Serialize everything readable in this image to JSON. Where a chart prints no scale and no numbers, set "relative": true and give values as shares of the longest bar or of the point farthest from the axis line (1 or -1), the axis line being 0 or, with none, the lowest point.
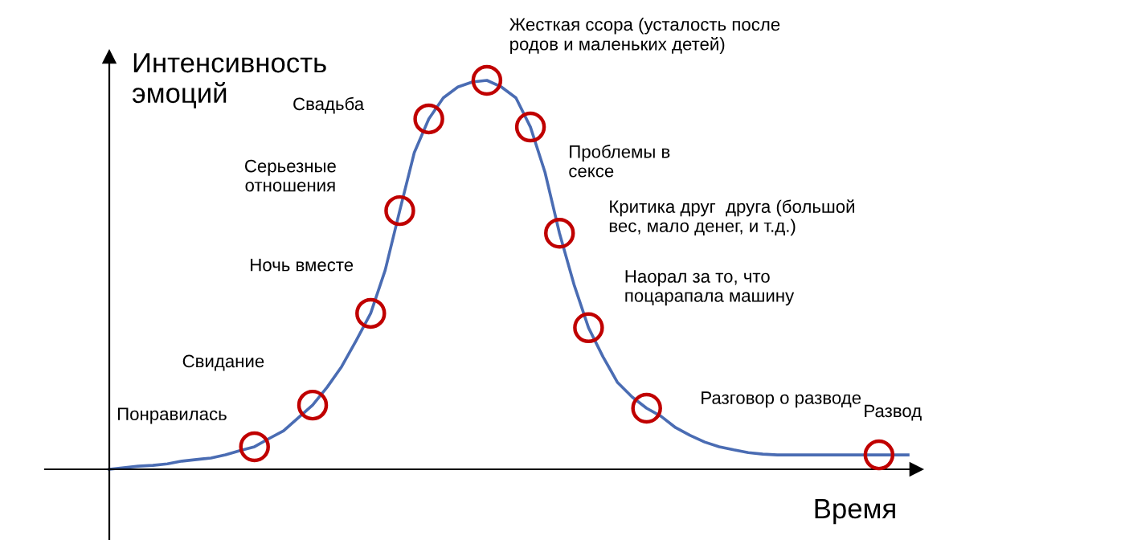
{
  "chart_data": {
    "type": "line",
    "relative": true,
    "xlabel": "Время",
    "ylabel": "Интенсивность\nэмоций",
    "legend": false,
    "categories": [
      null,
      null,
      null,
      null,
      null,
      null,
      null,
      null,
      null,
      null,
      null,
      null,
      null,
      null,
      null,
      null,
      null,
      null,
      null,
      null,
      null,
      null,
      null,
      null,
      null,
      null,
      null,
      null,
      null,
      null,
      null,
      null,
      null,
      null,
      null,
      null,
      null,
      null,
      null,
      null,
      null,
      null,
      null,
      null,
      null,
      null,
      null,
      null,
      null,
      null,
      null,
      null,
      null,
      null,
      null,
      null
    ],
    "series": [
      {
        "color": "#4a6cb3",
        "marker": "none",
        "values": [
          0,
          0.004,
          0.008,
          0.01,
          0.014,
          0.021,
          0.025,
          0.029,
          0.037,
          0.048,
          0.058,
          0.079,
          0.099,
          0.132,
          0.165,
          0.211,
          0.264,
          0.331,
          0.401,
          0.512,
          0.665,
          0.814,
          0.901,
          0.955,
          0.983,
          0.996,
          1.0,
          0.983,
          0.955,
          0.88,
          0.764,
          0.607,
          0.475,
          0.364,
          0.289,
          0.223,
          0.186,
          0.157,
          0.136,
          0.107,
          0.087,
          0.07,
          0.058,
          0.05,
          0.043,
          0.039,
          0.037,
          0.037,
          0.037,
          0.037,
          0.037,
          0.037,
          0.037,
          0.037,
          0.037,
          0.037
        ]
      }
    ],
    "annotations": [
      "Понравилась",
      "Свидание",
      "Ночь вместе",
      "Серьезные\nотношения",
      "Свадьба",
      "Жесткая ссора (усталость после\nродов и маленьких детей)",
      "Проблемы в\nсексе",
      "Критика друг  друга (большой\nвес, мало денег, и т.д.)",
      "Наорал за то, что\nпоцарапала машину",
      "Разговор о разводе",
      "Развод"
    ]
  }
}
